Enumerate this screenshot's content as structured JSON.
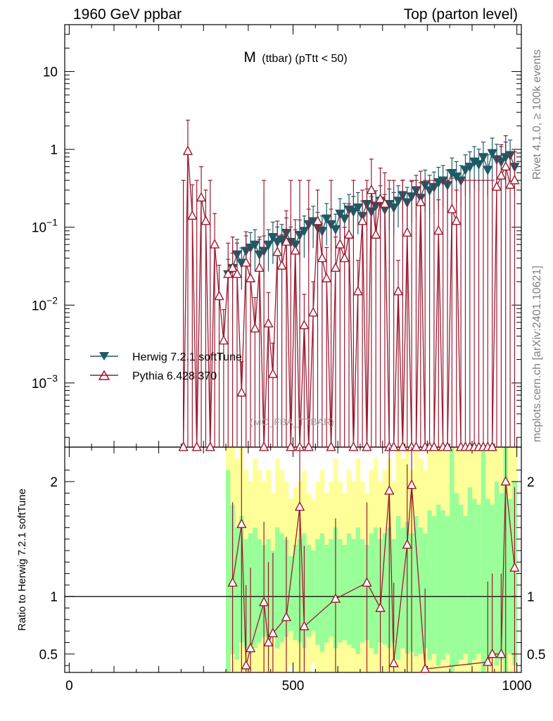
{
  "header": {
    "left_title": "1960 GeV ppbar",
    "right_title": "Top (parton level)",
    "plot_title_main": "M",
    "plot_title_sub": "(ttbar) (pTtt < 50)",
    "watermark": "(MC_FBA_TTBAR)",
    "side_label_top": "Rivet 4.1.0, ≥ 100k events",
    "side_label_bottom": "mcplots.cern.ch [arXiv:2401.10621]"
  },
  "colors": {
    "herwig": "#1f5a67",
    "pythia": "#9b1a30",
    "band_green": "#99ff99",
    "band_yellow": "#ffff99"
  },
  "chart_data": [
    {
      "type": "line",
      "title": "M (ttbar) (pTtt < 50)",
      "xlabel": "",
      "ylabel": "",
      "yscale": "log",
      "xlim": [
        -10,
        1010
      ],
      "ylim": [
        0.00015,
        40
      ],
      "yticks": [
        {
          "value": 0.001,
          "label": "10",
          "exp": "−3"
        },
        {
          "value": 0.01,
          "label": "10",
          "exp": "−2"
        },
        {
          "value": 0.1,
          "label": "10",
          "exp": "−1"
        },
        {
          "value": 1,
          "label": "1",
          "exp": ""
        },
        {
          "value": 10,
          "label": "10",
          "exp": ""
        }
      ],
      "legend": [
        {
          "name": "Herwig 7.2.1 softTune",
          "marker": "down-triangle"
        },
        {
          "name": "Pythia 6.428 370",
          "marker": "up-triangle"
        }
      ],
      "series": [
        {
          "name": "Herwig 7.2.1 softTune",
          "x": [
            355,
            365,
            375,
            385,
            395,
            405,
            415,
            425,
            435,
            445,
            455,
            465,
            475,
            485,
            495,
            505,
            515,
            525,
            535,
            545,
            555,
            565,
            575,
            585,
            595,
            605,
            615,
            625,
            635,
            645,
            655,
            665,
            675,
            685,
            695,
            705,
            715,
            725,
            735,
            745,
            755,
            765,
            775,
            785,
            795,
            805,
            815,
            825,
            835,
            845,
            855,
            865,
            875,
            885,
            895,
            905,
            915,
            925,
            935,
            945,
            955,
            965,
            975,
            985,
            995
          ],
          "y": [
            0.025,
            0.03,
            0.045,
            0.035,
            0.05,
            0.055,
            0.06,
            0.045,
            0.05,
            0.06,
            0.075,
            0.065,
            0.07,
            0.085,
            0.065,
            0.06,
            0.08,
            0.09,
            0.11,
            0.12,
            0.1,
            0.09,
            0.13,
            0.11,
            0.095,
            0.15,
            0.13,
            0.17,
            0.16,
            0.18,
            0.14,
            0.2,
            0.16,
            0.19,
            0.22,
            0.17,
            0.2,
            0.18,
            0.22,
            0.26,
            0.21,
            0.25,
            0.3,
            0.24,
            0.35,
            0.3,
            0.33,
            0.38,
            0.4,
            0.35,
            0.5,
            0.45,
            0.4,
            0.55,
            0.6,
            0.7,
            0.65,
            0.8,
            0.55,
            0.9,
            0.75,
            0.7,
            0.8,
            0.85,
            0.6
          ]
        },
        {
          "name": "Pythia 6.428 370",
          "x": [
            255,
            265,
            275,
            285,
            295,
            305,
            315,
            325,
            335,
            345,
            355,
            365,
            375,
            385,
            395,
            405,
            415,
            425,
            435,
            445,
            455,
            465,
            475,
            485,
            495,
            505,
            515,
            525,
            535,
            545,
            555,
            565,
            575,
            585,
            595,
            605,
            615,
            625,
            635,
            645,
            655,
            665,
            675,
            685,
            695,
            705,
            715,
            725,
            735,
            745,
            755,
            765,
            775,
            785,
            795,
            805,
            815,
            825,
            835,
            845,
            855,
            865,
            875,
            885,
            895,
            905,
            915,
            925,
            935,
            945,
            955,
            965,
            975,
            985,
            995
          ],
          "y": [
            0,
            0.95,
            0.14,
            0,
            0.24,
            0.12,
            0,
            0.06,
            0.013,
            0.0035,
            0.025,
            0.03,
            0.025,
            0.00075,
            0.035,
            0.022,
            0.005,
            0.03,
            0,
            0.0058,
            0.0013,
            0.048,
            0.032,
            0.065,
            0,
            0.05,
            0,
            0.0055,
            0,
            0.008,
            0.12,
            0.04,
            0.022,
            0,
            0.03,
            0.06,
            0.04,
            0.08,
            0,
            0.015,
            0.12,
            0,
            0.3,
            0.08,
            0.23,
            0.2,
            0,
            0,
            0.015,
            0,
            0.085,
            0,
            0,
            0.21,
            0,
            0,
            0,
            0.09,
            0,
            0,
            0.17,
            0.12,
            0,
            0,
            0,
            0,
            0,
            0,
            0,
            0,
            0.33,
            0.46,
            0.6,
            0.35,
            0.4
          ]
        }
      ]
    },
    {
      "type": "line",
      "title": "",
      "xlabel": "",
      "ylabel": "Ratio to Herwig 7.2.1 softTune",
      "xlim": [
        -10,
        1010
      ],
      "ylim": [
        0.34,
        2.3
      ],
      "xticks": [
        {
          "value": 0,
          "label": "0"
        },
        {
          "value": 500,
          "label": "500"
        },
        {
          "value": 1000,
          "label": "1000"
        }
      ],
      "yticks": [
        {
          "value": 0.5,
          "label": "0.5"
        },
        {
          "value": 1,
          "label": "1"
        },
        {
          "value": 2,
          "label": "2"
        }
      ],
      "reference_line": 1,
      "series": [
        {
          "name": "Pythia 6.428 370",
          "x": [
            365,
            385,
            395,
            405,
            435,
            445,
            455,
            485,
            515,
            525,
            595,
            665,
            695,
            715,
            725,
            755,
            765,
            795,
            935,
            945,
            965,
            975,
            995
          ],
          "y": [
            1.12,
            1.63,
            0.4,
            0.55,
            0.95,
            0.6,
            0.68,
            0.82,
            1.78,
            0.74,
            0.98,
            1.12,
            0.9,
            1.92,
            0.42,
            1.45,
            1.97,
            0.37,
            0.43,
            0.5,
            0.5,
            2.0,
            1.25
          ]
        }
      ],
      "bands": {
        "x": [
          355,
          365,
          375,
          385,
          395,
          405,
          415,
          425,
          435,
          445,
          455,
          465,
          475,
          485,
          495,
          505,
          515,
          525,
          535,
          545,
          555,
          565,
          575,
          585,
          595,
          605,
          615,
          625,
          635,
          645,
          655,
          665,
          675,
          685,
          695,
          705,
          715,
          725,
          735,
          745,
          755,
          765,
          775,
          785,
          795,
          805,
          815,
          825,
          835,
          845,
          855,
          865,
          875,
          885,
          895,
          905,
          915,
          925,
          935,
          945,
          955,
          965,
          975,
          985,
          995
        ],
        "green_lower": [
          0.34,
          0.5,
          0.45,
          0.6,
          0.55,
          0.5,
          0.55,
          0.6,
          0.65,
          0.6,
          0.7,
          0.55,
          0.6,
          0.65,
          0.7,
          0.62,
          0.6,
          0.55,
          0.65,
          0.7,
          0.58,
          0.52,
          0.6,
          0.65,
          0.55,
          0.6,
          0.62,
          0.58,
          0.55,
          0.5,
          0.6,
          0.62,
          0.55,
          0.5,
          0.6,
          0.58,
          0.55,
          0.6,
          0.45,
          0.55,
          0.5,
          0.52,
          0.48,
          0.5,
          0.55,
          0.45,
          0.5,
          0.4,
          0.45,
          0.5,
          0.34,
          0.4,
          0.45,
          0.5,
          0.4,
          0.45,
          0.5,
          0.34,
          0.45,
          0.5,
          0.4,
          0.45,
          0.34,
          0.5,
          0.4
        ],
        "green_upper": [
          2.1,
          1.8,
          1.6,
          1.7,
          1.5,
          1.55,
          1.6,
          1.5,
          1.45,
          1.5,
          1.4,
          1.6,
          1.55,
          1.5,
          1.35,
          1.45,
          1.5,
          1.55,
          1.45,
          1.4,
          1.5,
          1.55,
          1.45,
          1.5,
          1.6,
          1.5,
          1.45,
          1.55,
          1.5,
          1.6,
          1.5,
          1.45,
          1.55,
          1.6,
          1.5,
          1.55,
          1.6,
          1.5,
          1.7,
          1.6,
          1.65,
          1.55,
          1.7,
          1.6,
          1.55,
          1.75,
          1.7,
          1.8,
          1.75,
          1.7,
          2.3,
          1.9,
          1.8,
          1.7,
          1.95,
          1.85,
          1.8,
          2.3,
          1.85,
          1.8,
          2.0,
          1.9,
          2.3,
          1.85,
          2.0
        ],
        "yellow_lower": [
          0.34,
          0.34,
          0.34,
          0.34,
          0.34,
          0.34,
          0.34,
          0.34,
          0.34,
          0.34,
          0.34,
          0.34,
          0.34,
          0.34,
          0.4,
          0.34,
          0.34,
          0.34,
          0.34,
          0.42,
          0.34,
          0.34,
          0.34,
          0.34,
          0.34,
          0.34,
          0.34,
          0.34,
          0.34,
          0.34,
          0.34,
          0.34,
          0.34,
          0.34,
          0.34,
          0.34,
          0.34,
          0.34,
          0.34,
          0.34,
          0.34,
          0.34,
          0.34,
          0.34,
          0.34,
          0.34,
          0.34,
          0.34,
          0.34,
          0.34,
          0.34,
          0.34,
          0.34,
          0.34,
          0.34,
          0.34,
          0.34,
          0.34,
          0.34,
          0.34,
          0.34,
          0.34,
          0.34,
          0.34,
          0.34
        ],
        "yellow_upper": [
          2.3,
          2.3,
          2.2,
          2.3,
          2.1,
          2.0,
          2.2,
          2.1,
          2.0,
          2.1,
          1.9,
          2.2,
          2.1,
          2.0,
          1.85,
          1.95,
          2.0,
          2.1,
          1.9,
          1.85,
          2.0,
          2.1,
          1.9,
          2.0,
          2.2,
          2.0,
          1.9,
          2.1,
          2.0,
          2.2,
          2.0,
          1.9,
          2.1,
          2.2,
          2.0,
          2.1,
          2.2,
          2.0,
          2.3,
          2.2,
          2.3,
          2.1,
          2.3,
          2.2,
          2.1,
          2.3,
          2.3,
          2.3,
          2.3,
          2.3,
          2.3,
          2.3,
          2.3,
          2.3,
          2.3,
          2.3,
          2.3,
          2.3,
          2.3,
          2.3,
          2.3,
          2.3,
          2.3,
          2.3,
          2.3
        ]
      }
    }
  ]
}
